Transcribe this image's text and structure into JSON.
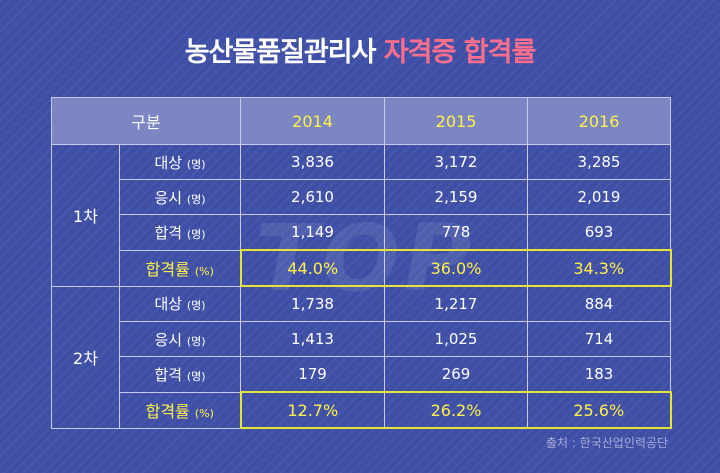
{
  "title": {
    "main": "농산물품질관리사",
    "accent": "자격증 합격률"
  },
  "watermark": "TOP",
  "table": {
    "header": {
      "category": "구분",
      "years": [
        "2014",
        "2015",
        "2016"
      ]
    },
    "groups": [
      {
        "name": "1차",
        "rows": [
          {
            "label": "대상",
            "unit": "(명)",
            "values": [
              "3,836",
              "3,172",
              "3,285"
            ]
          },
          {
            "label": "응시",
            "unit": "(명)",
            "values": [
              "2,610",
              "2,159",
              "2,019"
            ]
          },
          {
            "label": "합격",
            "unit": "(명)",
            "values": [
              "1,149",
              "778",
              "693"
            ]
          },
          {
            "label": "합격률",
            "unit": "(%)",
            "values": [
              "44.0%",
              "36.0%",
              "34.3%"
            ]
          }
        ]
      },
      {
        "name": "2차",
        "rows": [
          {
            "label": "대상",
            "unit": "(명)",
            "values": [
              "1,738",
              "1,217",
              "884"
            ]
          },
          {
            "label": "응시",
            "unit": "(명)",
            "values": [
              "1,413",
              "1,025",
              "714"
            ]
          },
          {
            "label": "합격",
            "unit": "(명)",
            "values": [
              "179",
              "269",
              "183"
            ]
          },
          {
            "label": "합격률",
            "unit": "(%)",
            "values": [
              "12.7%",
              "26.2%",
              "25.6%"
            ]
          }
        ]
      }
    ]
  },
  "source": "출처 : 한국산업인력공단",
  "colors": {
    "background": "#3f4fa6",
    "header": "#7b86c2",
    "highlight": "#fff24a",
    "title_accent": "#ff6e8c"
  }
}
